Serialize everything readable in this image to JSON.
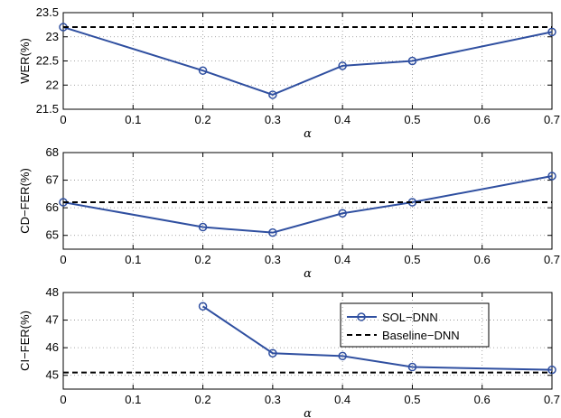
{
  "colors": {
    "series": "#2f4fa0",
    "baseline": "#000000",
    "axis": "#000000",
    "grid": "#8c8c8c"
  },
  "legend": {
    "panel": 2,
    "placement": "top-right",
    "entries": [
      {
        "label": "SOL−DNN",
        "style": "line-marker"
      },
      {
        "label": "Baseline−DNN",
        "style": "dashed"
      }
    ]
  },
  "chart_data": [
    {
      "type": "line",
      "ylabel": "WER(%)",
      "xlabel": "α",
      "xlim": [
        0,
        0.7
      ],
      "ylim": [
        21.5,
        23.5
      ],
      "xticks": [
        "0",
        "0.1",
        "0.2",
        "0.3",
        "0.4",
        "0.5",
        "0.6",
        "0.7"
      ],
      "yticks": [
        "21.5",
        "22",
        "22.5",
        "23",
        "23.5"
      ],
      "grid": true,
      "series": [
        {
          "name": "SOL−DNN",
          "x": [
            0,
            0.2,
            0.3,
            0.4,
            0.5,
            0.7
          ],
          "values": [
            23.2,
            22.3,
            21.8,
            22.4,
            22.5,
            23.1
          ]
        },
        {
          "name": "Baseline−DNN",
          "style": "dashed",
          "x": [
            0,
            0.7
          ],
          "values": [
            23.2,
            23.2
          ]
        }
      ]
    },
    {
      "type": "line",
      "ylabel": "CD−FER(%)",
      "xlabel": "α",
      "xlim": [
        0,
        0.7
      ],
      "ylim": [
        64.5,
        68
      ],
      "xticks": [
        "0",
        "0.1",
        "0.2",
        "0.3",
        "0.4",
        "0.5",
        "0.6",
        "0.7"
      ],
      "yticks": [
        "65",
        "66",
        "67",
        "68"
      ],
      "grid": true,
      "series": [
        {
          "name": "SOL−DNN",
          "x": [
            0,
            0.2,
            0.3,
            0.4,
            0.5,
            0.7
          ],
          "values": [
            66.2,
            65.3,
            65.1,
            65.8,
            66.2,
            67.15
          ]
        },
        {
          "name": "Baseline−DNN",
          "style": "dashed",
          "x": [
            0,
            0.7
          ],
          "values": [
            66.2,
            66.2
          ]
        }
      ]
    },
    {
      "type": "line",
      "ylabel": "CI−FER(%)",
      "xlabel": "α",
      "xlim": [
        0,
        0.7
      ],
      "ylim": [
        44.5,
        48
      ],
      "xticks": [
        "0",
        "0.1",
        "0.2",
        "0.3",
        "0.4",
        "0.5",
        "0.6",
        "0.7"
      ],
      "yticks": [
        "45",
        "46",
        "47",
        "48"
      ],
      "grid": true,
      "series": [
        {
          "name": "SOL−DNN",
          "x": [
            0.2,
            0.3,
            0.4,
            0.5,
            0.7
          ],
          "values": [
            47.5,
            45.8,
            45.7,
            45.3,
            45.2
          ]
        },
        {
          "name": "Baseline−DNN",
          "style": "dashed",
          "x": [
            0,
            0.7
          ],
          "values": [
            45.1,
            45.1
          ]
        }
      ]
    }
  ]
}
